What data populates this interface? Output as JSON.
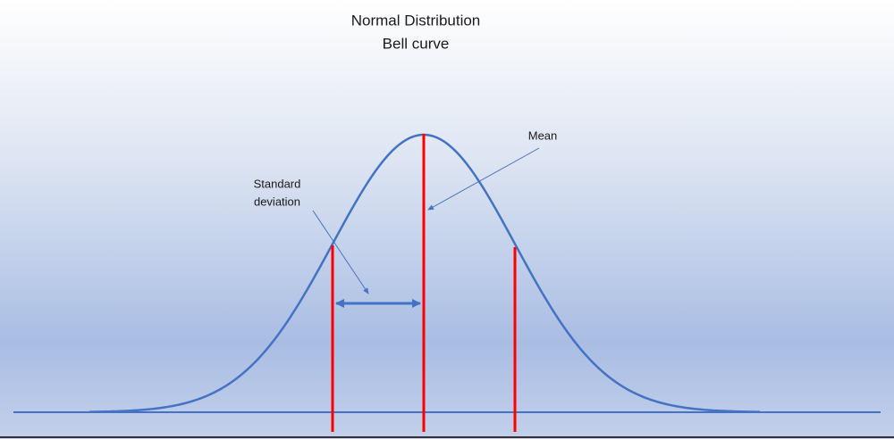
{
  "title": [
    "Normal Distribution",
    "Bell curve"
  ],
  "annotations": {
    "mean": "Mean",
    "standard_deviation": [
      "Standard",
      "deviation"
    ]
  }
}
